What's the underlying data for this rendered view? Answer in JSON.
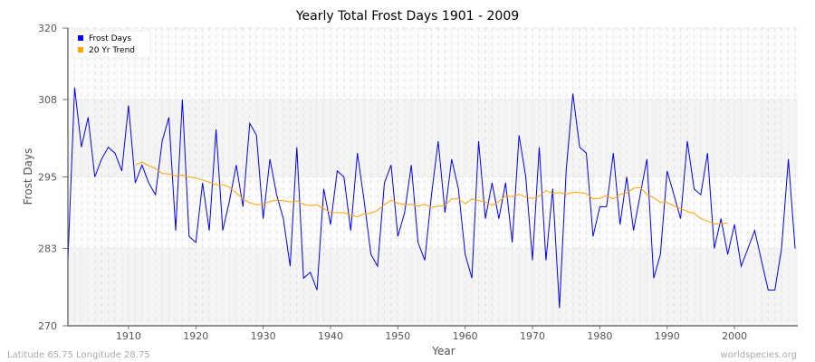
{
  "chart_data": {
    "type": "line",
    "title": "Yearly Total Frost Days 1901 - 2009",
    "xlabel": "Year",
    "ylabel": "Frost Days",
    "xlim": [
      1901,
      2009
    ],
    "ylim": [
      270,
      320
    ],
    "yticks": [
      270,
      283,
      295,
      308,
      320
    ],
    "xticks": [
      1910,
      1920,
      1930,
      1940,
      1950,
      1960,
      1970,
      1980,
      1990,
      2000
    ],
    "grid": true,
    "legend_position": "top-left",
    "series": [
      {
        "name": "Frost Days",
        "color": "#0000ff",
        "start_year": 1901,
        "values": [
          281,
          310,
          300,
          305,
          295,
          298,
          300,
          299,
          296,
          307,
          294,
          297,
          294,
          292,
          301,
          305,
          286,
          308,
          285,
          284,
          294,
          286,
          303,
          286,
          291,
          297,
          290,
          304,
          302,
          288,
          298,
          292,
          288,
          280,
          300,
          278,
          279,
          276,
          293,
          287,
          296,
          295,
          286,
          299,
          291,
          282,
          280,
          294,
          297,
          285,
          289,
          297,
          284,
          281,
          292,
          301,
          289,
          298,
          293,
          282,
          278,
          301,
          288,
          294,
          288,
          294,
          284,
          302,
          295,
          281,
          300,
          281,
          293,
          273,
          296,
          309,
          300,
          299,
          285,
          290,
          290,
          299,
          287,
          295,
          286,
          292,
          298,
          278,
          282,
          296,
          292,
          288,
          301,
          293,
          292,
          299,
          283,
          288,
          282,
          287,
          280,
          283,
          286,
          281,
          276,
          276,
          283,
          298,
          283
        ]
      },
      {
        "name": "20 Yr Trend",
        "color": "#ffa500",
        "start_year": 1911,
        "values": [
          297,
          297.5,
          296.9,
          296.4,
          295.6,
          295.5,
          295.2,
          295.3,
          295,
          294.8,
          294.5,
          294.1,
          293.7,
          293.7,
          293.3,
          292.3,
          291.3,
          290.7,
          290.3,
          290.4,
          290.9,
          291.1,
          291,
          290.8,
          291,
          290.4,
          290.2,
          290.3,
          289.7,
          289,
          289,
          289,
          288.6,
          288.3,
          288.8,
          288.9,
          289.4,
          290.3,
          291.1,
          290.6,
          290.3,
          290.4,
          290.1,
          290.4,
          289.9,
          290.1,
          290.2,
          291.3,
          291.3,
          290.5,
          291.3,
          291,
          290.8,
          290.2,
          290.9,
          291.8,
          291.7,
          292.1,
          291.6,
          291.4,
          291.8,
          292.7,
          292.2,
          292.4,
          292.1,
          292.4,
          292.4,
          292.2,
          291.3,
          291.4,
          291.9,
          291.3,
          292.1,
          292.3,
          293.1,
          293.2,
          292.1,
          291.5,
          290.7,
          290.7,
          290.1,
          289.7,
          289.2,
          288.9,
          288,
          287.6,
          287.1,
          287.1,
          287.3
        ]
      }
    ]
  },
  "footer": {
    "location": "Latitude 65.75 Longitude 28.75",
    "site": "worldspecies.org"
  }
}
